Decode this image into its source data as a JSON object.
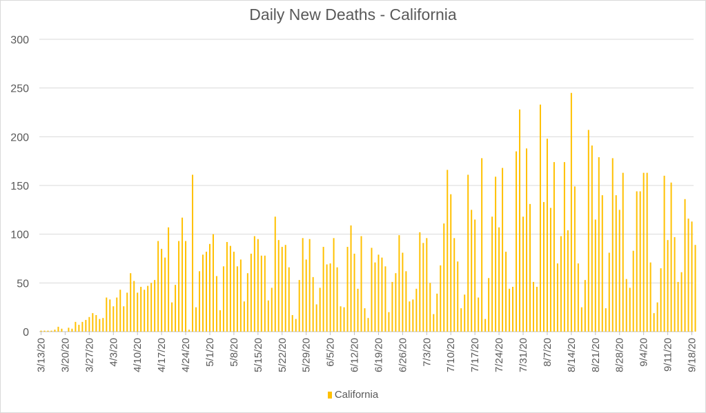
{
  "chart_data": {
    "type": "bar",
    "title": "Daily New Deaths - California",
    "xlabel": "",
    "ylabel": "",
    "ylim": [
      0,
      300
    ],
    "yticks": [
      "0",
      "50",
      "100",
      "150",
      "200",
      "250",
      "300"
    ],
    "grid": true,
    "legend_position": "bottom",
    "colors": {
      "bar": "#FFC000",
      "grid": "#d9d9d9",
      "text": "#595959"
    },
    "start_date": "3/13/20",
    "tick_labels": [
      "3/13/20",
      "3/20/20",
      "3/27/20",
      "4/3/20",
      "4/10/20",
      "4/17/20",
      "4/24/20",
      "5/1/20",
      "5/8/20",
      "5/15/20",
      "5/22/20",
      "5/29/20",
      "6/5/20",
      "6/12/20",
      "6/19/20",
      "6/26/20",
      "7/3/20",
      "7/10/20",
      "7/17/20",
      "7/24/20",
      "7/31/20",
      "8/7/20",
      "8/14/20",
      "8/21/20",
      "8/28/20",
      "9/4/20",
      "9/11/20",
      "9/18/20"
    ],
    "series": [
      {
        "name": "California",
        "values": [
          1,
          1,
          1,
          1,
          2,
          5,
          3,
          0,
          4,
          3,
          10,
          7,
          10,
          12,
          15,
          19,
          17,
          13,
          14,
          35,
          33,
          26,
          35,
          43,
          26,
          40,
          60,
          52,
          40,
          46,
          43,
          47,
          50,
          53,
          93,
          85,
          76,
          107,
          30,
          48,
          93,
          117,
          93,
          2,
          161,
          25,
          62,
          79,
          82,
          90,
          100,
          57,
          22,
          67,
          92,
          88,
          82,
          67,
          74,
          31,
          60,
          80,
          98,
          95,
          78,
          78,
          32,
          45,
          118,
          94,
          87,
          89,
          66,
          17,
          13,
          53,
          96,
          74,
          95,
          56,
          28,
          45,
          87,
          69,
          70,
          96,
          66,
          26,
          25,
          87,
          109,
          80,
          44,
          98,
          24,
          14,
          86,
          71,
          79,
          76,
          67,
          20,
          51,
          60,
          99,
          81,
          62,
          31,
          33,
          44,
          102,
          91,
          96,
          50,
          18,
          39,
          68,
          111,
          166,
          141,
          96,
          72,
          24,
          38,
          161,
          125,
          115,
          35,
          178,
          13,
          55,
          118,
          159,
          107,
          168,
          82,
          44,
          46,
          185,
          228,
          118,
          188,
          131,
          51,
          46,
          233,
          133,
          198,
          127,
          174,
          70,
          98,
          174,
          104,
          245,
          149,
          70,
          25,
          53,
          207,
          191,
          115,
          179,
          140,
          24,
          81,
          178,
          140,
          125,
          163,
          54,
          45,
          83,
          144,
          144,
          163,
          163,
          71,
          19,
          30,
          65,
          160,
          94,
          153,
          97,
          51,
          61,
          136,
          116,
          113,
          89
        ]
      }
    ]
  }
}
